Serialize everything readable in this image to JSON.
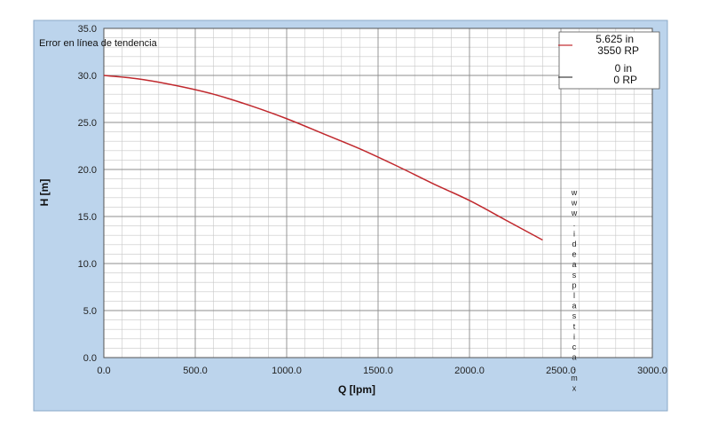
{
  "chart_data": {
    "type": "line",
    "title": "",
    "xlabel": "Q [lpm]",
    "ylabel": "H [m]",
    "xlim": [
      0,
      3000
    ],
    "ylim": [
      0,
      35
    ],
    "x_ticks": [
      "0.0",
      "500.0",
      "1000.0",
      "1500.0",
      "2000.0",
      "2500.0",
      "3000.0"
    ],
    "y_ticks": [
      "0.0",
      "5.0",
      "10.0",
      "15.0",
      "20.0",
      "25.0",
      "30.0",
      "35.0"
    ],
    "grid": true,
    "legend_position": "top-right",
    "annotation": "Error en línea de tendencia",
    "watermark": "www.ideasplastica.mx",
    "series": [
      {
        "name": "5.625 in 3550 RP",
        "color": "#c0282d",
        "x": [
          0,
          200,
          400,
          600,
          800,
          1000,
          1200,
          1400,
          1600,
          1800,
          2000,
          2200,
          2400
        ],
        "y": [
          30.0,
          29.6,
          28.9,
          28.0,
          26.8,
          25.4,
          23.8,
          22.2,
          20.4,
          18.5,
          16.7,
          14.6,
          12.5
        ]
      },
      {
        "name": "0 in 0 RP",
        "color": "#3b3b3b",
        "x": [],
        "y": []
      }
    ],
    "legend": [
      {
        "line1": "5.625 in",
        "line2": "3550 RP",
        "color": "#c0282d"
      },
      {
        "line1": "0 in",
        "line2": "0 RP",
        "color": "#3b3b3b"
      }
    ]
  }
}
